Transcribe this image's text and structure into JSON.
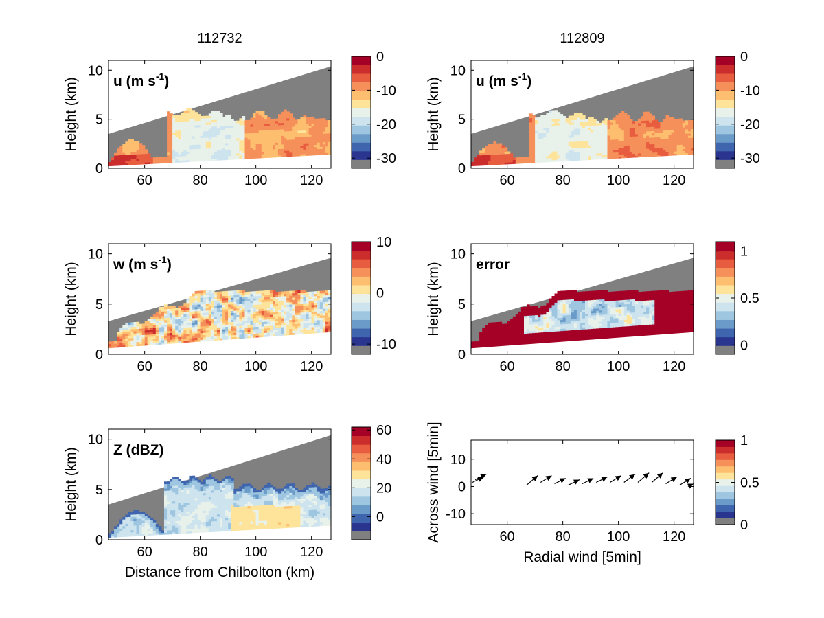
{
  "chart_data": [
    {
      "type": "heatmap",
      "title": "112732",
      "panel_label": "u (m s",
      "panel_label_sup": "-1",
      "panel_label_end": ")",
      "xlabel": "",
      "ylabel": "Height (km)",
      "xlim": [
        47,
        127
      ],
      "ylim": [
        0,
        11
      ],
      "xticks": [
        60,
        80,
        100,
        120
      ],
      "yticks": [
        0,
        5,
        10
      ],
      "colorbar": {
        "ticks": [
          "0",
          "-10",
          "-20",
          "-30"
        ],
        "range": [
          -33,
          0
        ]
      }
    },
    {
      "type": "heatmap",
      "title": "112809",
      "panel_label": "u (m s",
      "panel_label_sup": "-1",
      "panel_label_end": ")",
      "xlabel": "",
      "ylabel": "Height (km)",
      "xlim": [
        47,
        127
      ],
      "ylim": [
        0,
        11
      ],
      "xticks": [
        60,
        80,
        100,
        120
      ],
      "yticks": [
        0,
        5,
        10
      ],
      "colorbar": {
        "ticks": [
          "0",
          "-10",
          "-20",
          "-30"
        ],
        "range": [
          -33,
          0
        ]
      }
    },
    {
      "type": "heatmap",
      "title": "",
      "panel_label": "w (m s",
      "panel_label_sup": "-1",
      "panel_label_end": ")",
      "xlabel": "",
      "ylabel": "Height (km)",
      "xlim": [
        47,
        127
      ],
      "ylim": [
        0,
        11
      ],
      "xticks": [
        60,
        80,
        100,
        120
      ],
      "yticks": [
        0,
        5,
        10
      ],
      "colorbar": {
        "ticks": [
          "10",
          "0",
          "-10"
        ],
        "range": [
          -12,
          10
        ]
      }
    },
    {
      "type": "heatmap",
      "title": "",
      "panel_label": "error",
      "xlabel": "",
      "ylabel": "Height (km)",
      "xlim": [
        47,
        127
      ],
      "ylim": [
        0,
        11
      ],
      "xticks": [
        60,
        80,
        100,
        120
      ],
      "yticks": [
        0,
        5,
        10
      ],
      "colorbar": {
        "ticks": [
          "1",
          "0.5",
          "0"
        ],
        "range": [
          -0.1,
          1.1
        ]
      }
    },
    {
      "type": "heatmap",
      "title": "",
      "panel_label": "Z (dBZ)",
      "xlabel": "Distance from Chilbolton (km)",
      "ylabel": "Height (km)",
      "xlim": [
        47,
        127
      ],
      "ylim": [
        0,
        11
      ],
      "xticks": [
        60,
        80,
        100,
        120
      ],
      "yticks": [
        0,
        5,
        10
      ],
      "colorbar": {
        "ticks": [
          "60",
          "40",
          "20",
          "0"
        ],
        "range": [
          -16,
          62
        ]
      }
    },
    {
      "type": "scatter",
      "title": "",
      "xlabel": "Radial wind [5min]",
      "ylabel": "Across wind [5min]",
      "xlim": [
        47,
        127
      ],
      "ylim": [
        -14,
        17
      ],
      "xticks": [
        60,
        80,
        100,
        120
      ],
      "yticks": [
        10,
        0,
        -10
      ],
      "vectors": [
        {
          "x": 47.5,
          "y": 1.5,
          "dx": 4,
          "dy": 2
        },
        {
          "x": 48.5,
          "y": 2.5,
          "dx": 4,
          "dy": 2
        },
        {
          "x": 67,
          "y": 0.5,
          "dx": 4,
          "dy": 3.5
        },
        {
          "x": 72,
          "y": 1.5,
          "dx": 4,
          "dy": 2.5
        },
        {
          "x": 77,
          "y": 1.0,
          "dx": 4,
          "dy": 2
        },
        {
          "x": 82,
          "y": 0.5,
          "dx": 4,
          "dy": 2
        },
        {
          "x": 87,
          "y": 1.0,
          "dx": 4,
          "dy": 2
        },
        {
          "x": 92,
          "y": 1.5,
          "dx": 4,
          "dy": 2
        },
        {
          "x": 97,
          "y": 1.5,
          "dx": 4,
          "dy": 2.5
        },
        {
          "x": 102,
          "y": 1.5,
          "dx": 4,
          "dy": 3
        },
        {
          "x": 107,
          "y": 1.5,
          "dx": 4,
          "dy": 3.5
        },
        {
          "x": 112,
          "y": 1.5,
          "dx": 4,
          "dy": 3.5
        },
        {
          "x": 117,
          "y": 1.0,
          "dx": 4,
          "dy": 2.5
        },
        {
          "x": 122,
          "y": 0.5,
          "dx": 4,
          "dy": 2.5
        },
        {
          "x": 125,
          "y": 0.0,
          "dx": 2,
          "dy": 1
        }
      ],
      "colorbar": {
        "ticks": [
          "1",
          "0.5",
          "0"
        ],
        "range": [
          0,
          1
        ]
      }
    }
  ],
  "colors": {
    "colormap": [
      "#808080",
      "#2a3590",
      "#3f65ae",
      "#6b9bc9",
      "#9ec6e0",
      "#cde4ef",
      "#e8f1ea",
      "#fde49a",
      "#fdbf6f",
      "#f6905a",
      "#e85d3f",
      "#cb2c2c",
      "#a50026"
    ],
    "background_mask": "#808080"
  }
}
